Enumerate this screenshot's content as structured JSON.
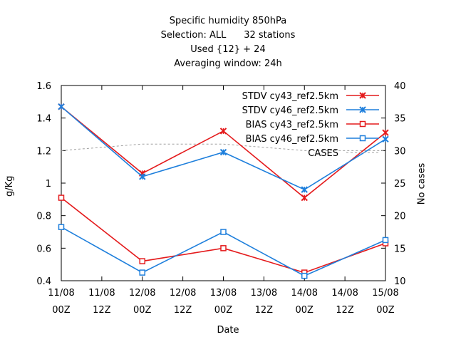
{
  "chart_data": {
    "type": "line",
    "title": [
      "Specific humidity 850hPa",
      "Selection: ALL      32 stations",
      "Used {12} + 24",
      "Averaging window: 24h"
    ],
    "xlabel": "Date",
    "ylabel": "g/Kg",
    "y2label": "No cases",
    "x_ticks": [
      {
        "date": "11/08",
        "hour": "00Z"
      },
      {
        "date": "11/08",
        "hour": "12Z"
      },
      {
        "date": "12/08",
        "hour": "00Z"
      },
      {
        "date": "12/08",
        "hour": "12Z"
      },
      {
        "date": "13/08",
        "hour": "00Z"
      },
      {
        "date": "13/08",
        "hour": "12Z"
      },
      {
        "date": "14/08",
        "hour": "00Z"
      },
      {
        "date": "14/08",
        "hour": "12Z"
      },
      {
        "date": "15/08",
        "hour": "00Z"
      }
    ],
    "x": [
      "11/08 00Z",
      "12/08 00Z",
      "13/08 00Z",
      "14/08 00Z",
      "15/08 00Z"
    ],
    "ylim": [
      0.4,
      1.6
    ],
    "yticks": [
      "0.4",
      "0.6",
      "0.8",
      "1",
      "1.2",
      "1.4",
      "1.6"
    ],
    "y2lim": [
      10,
      40
    ],
    "y2ticks": [
      "10",
      "15",
      "20",
      "25",
      "30",
      "35",
      "40"
    ],
    "legend_position": "top-right",
    "series": [
      {
        "name": "STDV cy43_ref2.5km",
        "color": "#e41a1c",
        "marker": "x",
        "axis": "left",
        "values": [
          1.47,
          1.06,
          1.32,
          0.91,
          1.31
        ]
      },
      {
        "name": "STDV cy46_ref2.5km",
        "color": "#1e7fdc",
        "marker": "x",
        "axis": "left",
        "values": [
          1.47,
          1.04,
          1.19,
          0.96,
          1.27
        ]
      },
      {
        "name": "BIAS cy43_ref2.5km",
        "color": "#e41a1c",
        "marker": "square",
        "axis": "left",
        "values": [
          0.91,
          0.52,
          0.6,
          0.45,
          0.63
        ]
      },
      {
        "name": "BIAS cy46_ref2.5km",
        "color": "#1e7fdc",
        "marker": "square",
        "axis": "left",
        "values": [
          0.73,
          0.45,
          0.7,
          0.43,
          0.65
        ]
      },
      {
        "name": "CASES",
        "color": "#a0a0a0",
        "marker": "none",
        "dashed": true,
        "axis": "right",
        "values": [
          30,
          31,
          31,
          30,
          30
        ]
      }
    ]
  }
}
